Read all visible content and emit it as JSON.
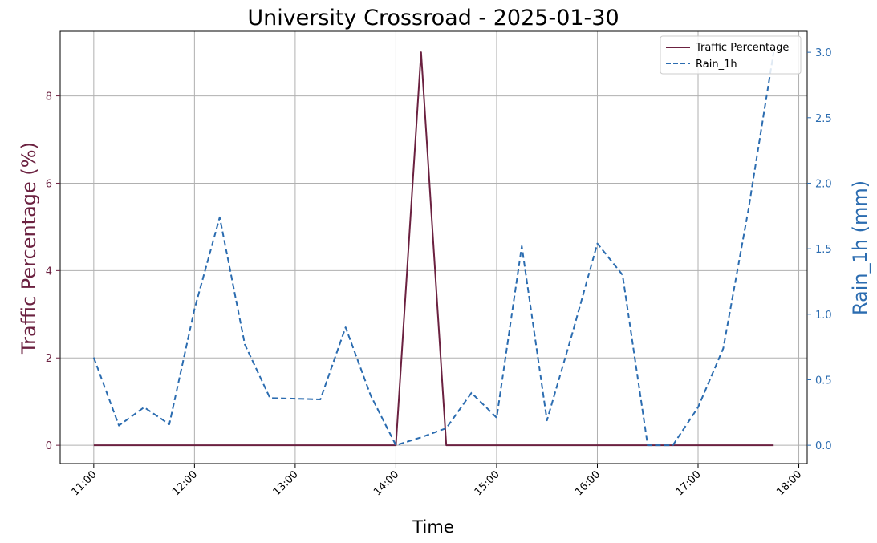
{
  "chart_data": {
    "type": "line",
    "title": "University Crossroad - 2025-01-30",
    "xlabel": "Time",
    "ylabel_left": "Traffic Percentage (%)",
    "ylabel_right": "Rain_1h (mm)",
    "x_tick_labels": [
      "11:00",
      "12:00",
      "13:00",
      "14:00",
      "15:00",
      "16:00",
      "17:00",
      "18:00"
    ],
    "x_tick_minutes": [
      660,
      720,
      780,
      840,
      900,
      960,
      1020,
      1080
    ],
    "y_left_ticks": [
      0,
      2,
      4,
      6,
      8
    ],
    "y_right_ticks": [
      "0.0",
      "0.5",
      "1.0",
      "1.5",
      "2.0",
      "2.5",
      "3.0"
    ],
    "x_range_minutes": [
      640,
      1085
    ],
    "y_left_range": [
      -0.42,
      9.48
    ],
    "y_right_range": [
      -0.14,
      3.16
    ],
    "grid": true,
    "legend_position": "top-right",
    "colors": {
      "traffic": "#6b2140",
      "rain": "#2b6cb0"
    },
    "x": [
      "11:00",
      "11:15",
      "11:30",
      "11:45",
      "12:00",
      "12:15",
      "12:30",
      "12:45",
      "13:00",
      "13:15",
      "13:30",
      "13:45",
      "14:00",
      "14:15",
      "14:30",
      "14:45",
      "15:00",
      "15:15",
      "15:30",
      "15:45",
      "16:00",
      "16:15",
      "16:30",
      "16:45",
      "17:00",
      "17:15",
      "17:30",
      "17:45"
    ],
    "series": [
      {
        "name": "Traffic Percentage",
        "axis": "left",
        "style": "solid",
        "values": [
          0,
          0,
          0,
          0,
          0,
          0,
          0,
          0,
          0,
          0,
          0,
          0,
          0,
          9.0,
          0,
          0,
          0,
          0,
          0,
          0,
          0,
          0,
          0,
          0,
          0,
          0,
          0,
          0
        ]
      },
      {
        "name": "Rain_1h",
        "axis": "right",
        "style": "dashed",
        "values": [
          0.67,
          0.15,
          0.29,
          0.16,
          1.04,
          1.74,
          0.77,
          0.36,
          0.355,
          0.35,
          0.9,
          0.38,
          0.0,
          0.06,
          0.13,
          0.4,
          0.21,
          1.52,
          0.19,
          0.85,
          1.54,
          1.3,
          0.0,
          0.0,
          0.29,
          0.74,
          1.8,
          3.0
        ]
      }
    ]
  }
}
